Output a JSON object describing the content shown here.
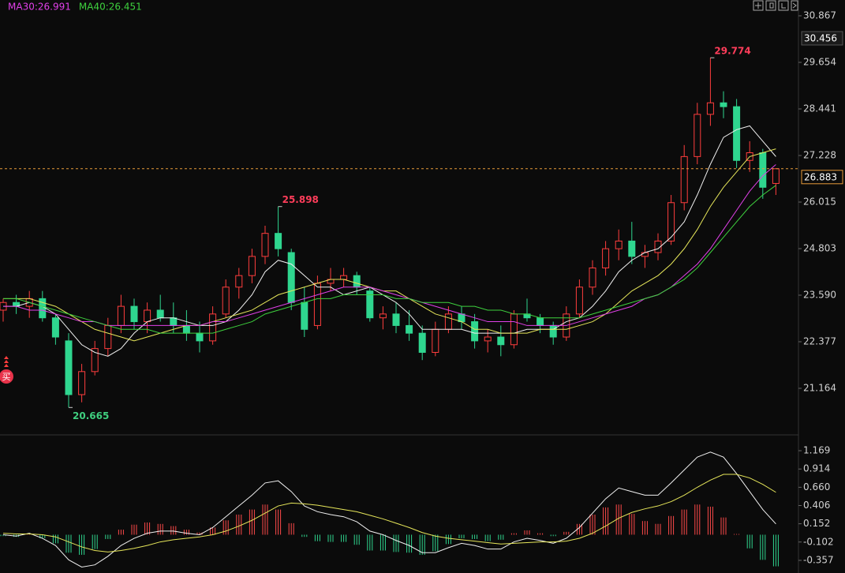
{
  "chart_data": [
    {
      "type": "candlestick",
      "open": [
        23.2,
        23.4,
        23.3,
        23.5,
        23.0,
        22.4,
        21.0,
        21.6,
        22.2,
        22.8,
        23.3,
        22.9,
        23.2,
        23.0,
        22.8,
        22.6,
        22.4,
        23.1,
        23.8,
        24.1,
        24.6,
        25.2,
        24.7,
        23.4,
        22.8,
        23.9,
        24.0,
        24.1,
        23.7,
        23.0,
        23.1,
        22.8,
        22.6,
        22.1,
        22.7,
        23.1,
        22.9,
        22.4,
        22.5,
        22.3,
        23.1,
        23.0,
        22.8,
        22.5,
        23.1,
        23.8,
        24.3,
        24.8,
        25.0,
        24.6,
        24.7,
        25.0,
        26.0,
        27.2,
        28.3,
        28.6,
        28.5,
        27.1,
        27.3,
        26.5
      ],
      "high": [
        23.5,
        23.6,
        23.7,
        23.7,
        23.1,
        22.6,
        21.8,
        22.4,
        23.0,
        23.6,
        23.5,
        23.4,
        23.6,
        23.4,
        23.2,
        22.9,
        23.3,
        24.0,
        24.3,
        24.8,
        25.4,
        25.898,
        24.8,
        23.8,
        24.1,
        24.3,
        24.3,
        24.2,
        23.8,
        23.3,
        23.4,
        23.2,
        22.8,
        22.9,
        23.3,
        23.3,
        23.1,
        22.7,
        22.8,
        23.2,
        23.5,
        23.1,
        22.9,
        23.3,
        24.0,
        24.5,
        25.0,
        25.3,
        25.5,
        24.9,
        25.2,
        26.2,
        27.5,
        28.6,
        29.774,
        28.9,
        28.7,
        27.6,
        27.4,
        26.9
      ],
      "low": [
        22.9,
        23.1,
        23.0,
        22.9,
        22.3,
        20.665,
        20.8,
        21.5,
        22.0,
        22.6,
        22.7,
        22.6,
        22.9,
        22.6,
        22.4,
        22.1,
        22.3,
        23.0,
        23.5,
        23.9,
        24.4,
        24.6,
        23.2,
        22.5,
        22.7,
        23.7,
        23.8,
        23.6,
        22.9,
        22.7,
        22.6,
        22.4,
        21.9,
        22.0,
        22.6,
        22.7,
        22.2,
        22.1,
        22.0,
        22.2,
        22.9,
        22.6,
        22.3,
        22.4,
        23.0,
        23.6,
        24.1,
        24.5,
        24.4,
        24.3,
        24.5,
        24.9,
        25.8,
        27.0,
        28.0,
        28.2,
        26.9,
        26.8,
        26.1,
        26.2
      ],
      "close": [
        23.4,
        23.3,
        23.5,
        23.0,
        22.5,
        21.0,
        21.6,
        22.2,
        22.8,
        23.3,
        22.9,
        23.2,
        23.0,
        22.8,
        22.6,
        22.4,
        23.1,
        23.8,
        24.1,
        24.6,
        25.2,
        24.8,
        23.4,
        22.7,
        23.9,
        24.0,
        24.1,
        23.8,
        23.0,
        23.1,
        22.8,
        22.6,
        22.1,
        22.7,
        23.1,
        22.9,
        22.4,
        22.5,
        22.3,
        23.1,
        23.0,
        22.8,
        22.5,
        23.1,
        23.8,
        24.3,
        24.8,
        25.0,
        24.6,
        24.7,
        25.0,
        26.0,
        27.2,
        28.3,
        28.6,
        28.5,
        27.1,
        27.3,
        26.4,
        26.883
      ],
      "up_color": "#ff3d3d",
      "down_color": "#2fd68f",
      "series": [
        {
          "color": "#f0f0f0",
          "values": [
            23.3,
            23.3,
            23.4,
            23.3,
            23.1,
            22.7,
            22.3,
            22.1,
            22.0,
            22.2,
            22.6,
            22.9,
            23.0,
            23.0,
            22.9,
            22.8,
            22.8,
            22.9,
            23.2,
            23.6,
            24.2,
            24.5,
            24.4,
            24.1,
            23.8,
            23.8,
            23.6,
            23.7,
            23.8,
            23.6,
            23.4,
            23.1,
            22.7,
            22.7,
            22.7,
            22.7,
            22.6,
            22.6,
            22.6,
            22.6,
            22.7,
            22.7,
            22.7,
            22.9,
            23.0,
            23.3,
            23.7,
            24.2,
            24.5,
            24.7,
            24.8,
            25.1,
            25.5,
            26.2,
            27.0,
            27.7,
            27.9,
            28.0,
            27.6,
            27.2
          ]
        },
        {
          "color": "#e6e65a",
          "values": [
            23.5,
            23.5,
            23.5,
            23.4,
            23.3,
            23.1,
            22.9,
            22.7,
            22.6,
            22.5,
            22.4,
            22.5,
            22.6,
            22.7,
            22.8,
            22.8,
            22.9,
            23.0,
            23.1,
            23.2,
            23.4,
            23.6,
            23.7,
            23.8,
            23.9,
            24.0,
            24.0,
            23.9,
            23.8,
            23.7,
            23.7,
            23.5,
            23.3,
            23.1,
            23.0,
            22.9,
            22.7,
            22.7,
            22.6,
            22.6,
            22.6,
            22.7,
            22.7,
            22.7,
            22.8,
            22.9,
            23.1,
            23.4,
            23.7,
            23.9,
            24.1,
            24.4,
            24.8,
            25.3,
            25.9,
            26.4,
            26.8,
            27.2,
            27.3,
            27.4
          ]
        },
        {
          "name": "MA30:26.991",
          "color": "#e040e8",
          "values": [
            23.3,
            23.3,
            23.2,
            23.2,
            23.1,
            23.0,
            22.9,
            22.9,
            22.8,
            22.8,
            22.8,
            22.8,
            22.8,
            22.8,
            22.8,
            22.8,
            22.9,
            22.9,
            23.0,
            23.1,
            23.2,
            23.3,
            23.4,
            23.5,
            23.6,
            23.7,
            23.8,
            23.8,
            23.8,
            23.7,
            23.6,
            23.5,
            23.4,
            23.3,
            23.2,
            23.1,
            23.0,
            22.9,
            22.9,
            22.9,
            22.8,
            22.8,
            22.8,
            22.8,
            22.9,
            23.0,
            23.1,
            23.2,
            23.3,
            23.5,
            23.6,
            23.8,
            24.1,
            24.4,
            24.8,
            25.3,
            25.8,
            26.3,
            26.7,
            26.991
          ]
        },
        {
          "name": "MA40:26.451",
          "color": "#3ed13e",
          "values": [
            23.5,
            23.5,
            23.4,
            23.3,
            23.2,
            23.1,
            23.0,
            22.9,
            22.8,
            22.7,
            22.7,
            22.7,
            22.6,
            22.6,
            22.6,
            22.6,
            22.6,
            22.7,
            22.8,
            22.9,
            23.1,
            23.2,
            23.3,
            23.4,
            23.5,
            23.5,
            23.6,
            23.6,
            23.6,
            23.6,
            23.5,
            23.5,
            23.4,
            23.4,
            23.4,
            23.3,
            23.3,
            23.2,
            23.2,
            23.1,
            23.1,
            23.0,
            23.0,
            23.0,
            23.0,
            23.1,
            23.2,
            23.3,
            23.4,
            23.5,
            23.6,
            23.8,
            24.0,
            24.3,
            24.7,
            25.1,
            25.5,
            25.9,
            26.2,
            26.451
          ]
        }
      ],
      "ylim": [
        19.972,
        31.278
      ],
      "yticks": [
        30.867,
        29.654,
        28.441,
        27.228,
        26.015,
        {
          "value": 24.803,
          "label": "24.803"
        },
        {
          "value": 23.59,
          "label": "23.590"
        },
        22.377,
        21.164
      ],
      "current_price": 26.883,
      "cursor_price": 30.456,
      "buy_marker": "买"
    },
    {
      "type": "macd",
      "series": [
        {
          "color": "#f0f0f0",
          "values": [
            0.0,
            -0.02,
            0.02,
            -0.05,
            -0.15,
            -0.35,
            -0.45,
            -0.42,
            -0.3,
            -0.15,
            -0.05,
            0.02,
            0.05,
            0.05,
            0.02,
            0.0,
            0.1,
            0.25,
            0.4,
            0.55,
            0.72,
            0.75,
            0.6,
            0.4,
            0.32,
            0.28,
            0.25,
            0.18,
            0.05,
            0.0,
            -0.08,
            -0.15,
            -0.25,
            -0.25,
            -0.18,
            -0.12,
            -0.15,
            -0.2,
            -0.2,
            -0.1,
            -0.05,
            -0.08,
            -0.12,
            -0.05,
            0.1,
            0.3,
            0.5,
            0.65,
            0.6,
            0.55,
            0.55,
            0.72,
            0.9,
            1.08,
            1.15,
            1.08,
            0.85,
            0.6,
            0.35,
            0.15
          ]
        },
        {
          "color": "#e6e65a",
          "values": [
            0.02,
            0.01,
            0.01,
            0.0,
            -0.03,
            -0.1,
            -0.17,
            -0.22,
            -0.24,
            -0.22,
            -0.19,
            -0.15,
            -0.1,
            -0.07,
            -0.05,
            -0.03,
            0.0,
            0.05,
            0.12,
            0.2,
            0.3,
            0.4,
            0.44,
            0.43,
            0.41,
            0.38,
            0.35,
            0.32,
            0.27,
            0.22,
            0.16,
            0.1,
            0.03,
            -0.02,
            -0.05,
            -0.07,
            -0.09,
            -0.11,
            -0.13,
            -0.12,
            -0.11,
            -0.1,
            -0.1,
            -0.09,
            -0.05,
            0.02,
            0.12,
            0.23,
            0.31,
            0.36,
            0.4,
            0.46,
            0.55,
            0.66,
            0.76,
            0.84,
            0.84,
            0.79,
            0.7,
            0.59
          ]
        }
      ],
      "hist": [
        -0.02,
        -0.03,
        0.01,
        -0.05,
        -0.12,
        -0.25,
        -0.28,
        -0.2,
        -0.06,
        0.07,
        0.14,
        0.17,
        0.15,
        0.12,
        0.07,
        0.03,
        0.1,
        0.2,
        0.28,
        0.35,
        0.42,
        0.35,
        0.16,
        -0.03,
        -0.09,
        -0.1,
        -0.1,
        -0.14,
        -0.22,
        -0.22,
        -0.24,
        -0.25,
        -0.28,
        -0.23,
        -0.13,
        -0.05,
        -0.06,
        -0.09,
        -0.07,
        0.02,
        0.06,
        0.02,
        -0.02,
        0.04,
        0.15,
        0.28,
        0.38,
        0.42,
        0.29,
        0.19,
        0.15,
        0.26,
        0.35,
        0.42,
        0.39,
        0.24,
        0.01,
        -0.19,
        -0.35,
        -0.44
      ],
      "up_color": "#ff4a4a",
      "down_color": "#2fd68f",
      "ylim": [
        -0.533,
        1.378
      ],
      "yticks": [
        1.169,
        0.914,
        {
          "value": 0.66,
          "label": "0.660"
        },
        0.406,
        0.152,
        -0.102,
        -0.357
      ]
    }
  ]
}
